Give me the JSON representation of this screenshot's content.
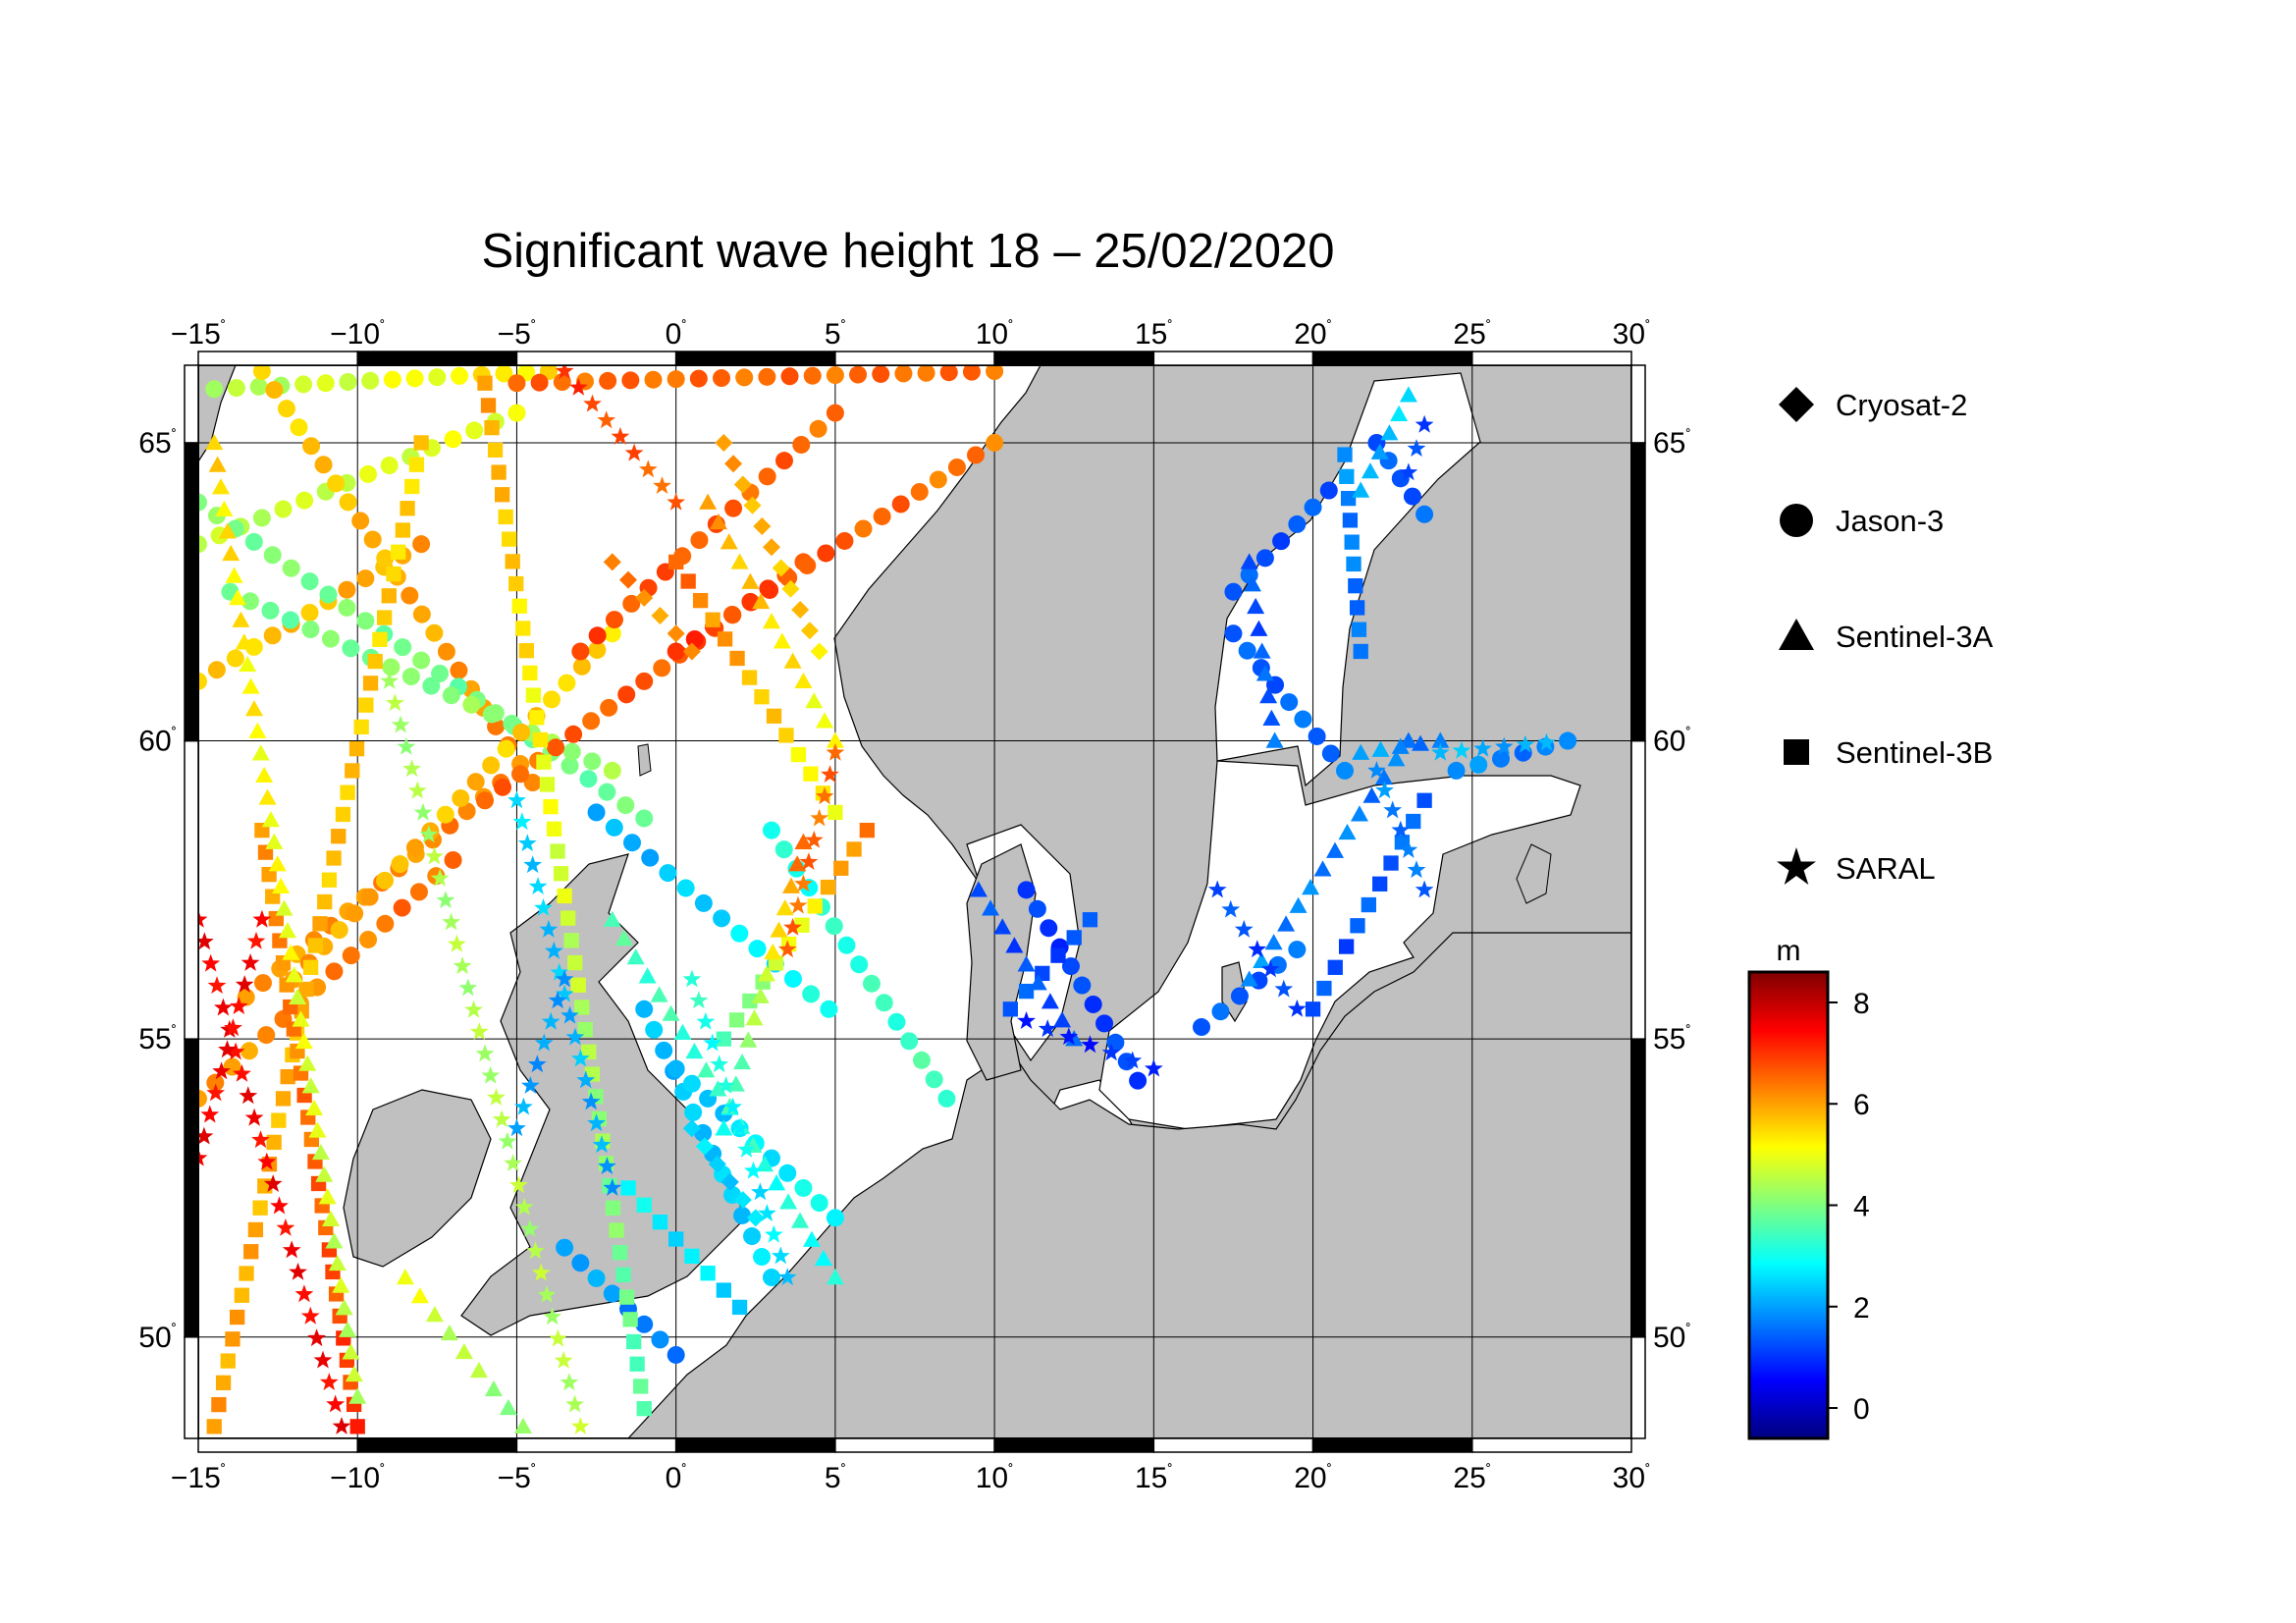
{
  "title": "Significant wave height 18 – 25/02/2020",
  "map": {
    "lon_range": [
      -15,
      30
    ],
    "lat_range": [
      48.3,
      66.3
    ],
    "lon_ticks": [
      -15,
      -10,
      -5,
      0,
      5,
      10,
      15,
      20,
      25,
      30
    ],
    "lat_ticks": [
      50,
      55,
      60,
      65
    ],
    "lon_tick_labels": [
      "−15",
      "−10",
      "−5",
      "0",
      "5",
      "10",
      "15",
      "20",
      "25",
      "30"
    ],
    "lat_tick_labels": [
      "50",
      "55",
      "60",
      "65"
    ],
    "degree_symbol": "˚",
    "grid": true,
    "land_color": "#c0c0c0",
    "sea_color": "#ffffff"
  },
  "legend": {
    "placement": "right",
    "entries": [
      {
        "label": "Cryosat-2",
        "marker": "diamond"
      },
      {
        "label": "Jason-3",
        "marker": "circle"
      },
      {
        "label": "Sentinel-3A",
        "marker": "triangle"
      },
      {
        "label": "Sentinel-3B",
        "marker": "square"
      },
      {
        "label": "SARAL",
        "marker": "star"
      }
    ]
  },
  "colorbar": {
    "unit": "m",
    "range": [
      -0.6,
      8.6
    ],
    "ticks": [
      "0",
      "2",
      "4",
      "6",
      "8"
    ],
    "tick_values": [
      0,
      2,
      4,
      6,
      8
    ],
    "colors": [
      "#00007f",
      "#0000ff",
      "#007fff",
      "#00ffff",
      "#7fff7f",
      "#ffff00",
      "#ff7f00",
      "#ff0000",
      "#7f0000"
    ]
  },
  "chart_data": {
    "type": "scatter",
    "title": "Significant wave height 18 – 25/02/2020",
    "xlabel": "",
    "ylabel": "",
    "xlim": [
      -15,
      30
    ],
    "ylim": [
      48.3,
      66.3
    ],
    "tracks": [
      {
        "marker": "circle",
        "from": [
          -15.0,
          61.0
        ],
        "to": [
          -8.0,
          63.3
        ],
        "hs": [
          5.5,
          6.0
        ]
      },
      {
        "marker": "circle",
        "from": [
          -15.0,
          63.3
        ],
        "to": [
          -5.0,
          65.5
        ],
        "hs": [
          4.5,
          5.0
        ]
      },
      {
        "marker": "circle",
        "from": [
          -14.5,
          65.9
        ],
        "to": [
          -4.0,
          66.2
        ],
        "hs": [
          4.3,
          5.5
        ]
      },
      {
        "marker": "circle",
        "from": [
          -13.0,
          66.2
        ],
        "to": [
          -4.5,
          59.3
        ],
        "hs": [
          5.5,
          6.3
        ]
      },
      {
        "marker": "circle",
        "from": [
          -15.0,
          64.0
        ],
        "to": [
          -1.0,
          58.7
        ],
        "hs": [
          4.0,
          3.8
        ]
      },
      {
        "marker": "circle",
        "from": [
          -14.0,
          62.5
        ],
        "to": [
          -2.0,
          59.5
        ],
        "hs": [
          3.8,
          4.3
        ]
      },
      {
        "marker": "circle",
        "from": [
          -13.5,
          55.7
        ],
        "to": [
          -5.5,
          59.3
        ],
        "hs": [
          6.0,
          6.3
        ]
      },
      {
        "marker": "circle",
        "from": [
          -15.0,
          54.0
        ],
        "to": [
          -7.0,
          58.0
        ],
        "hs": [
          6.0,
          6.5
        ]
      },
      {
        "marker": "circle",
        "from": [
          -12.0,
          56.0
        ],
        "to": [
          -2.0,
          61.8
        ],
        "hs": [
          6.0,
          5.5
        ]
      },
      {
        "marker": "circle",
        "from": [
          -6.0,
          59.0
        ],
        "to": [
          4.0,
          63.0
        ],
        "hs": [
          6.5,
          6.8
        ]
      },
      {
        "marker": "circle",
        "from": [
          -3.0,
          61.5
        ],
        "to": [
          5.0,
          65.5
        ],
        "hs": [
          6.8,
          6.5
        ]
      },
      {
        "marker": "circle",
        "from": [
          0.0,
          61.5
        ],
        "to": [
          10.0,
          65.0
        ],
        "hs": [
          7.0,
          6.3
        ]
      },
      {
        "marker": "circle",
        "from": [
          -5.0,
          66.0
        ],
        "to": [
          10.0,
          66.2
        ],
        "hs": [
          6.5,
          6.5
        ]
      },
      {
        "marker": "circle",
        "from": [
          -2.5,
          58.8
        ],
        "to": [
          4.8,
          55.5
        ],
        "hs": [
          2.0,
          3.0
        ]
      },
      {
        "marker": "circle",
        "from": [
          -1.0,
          55.5
        ],
        "to": [
          3.0,
          51.0
        ],
        "hs": [
          2.2,
          2.5
        ]
      },
      {
        "marker": "circle",
        "from": [
          0.0,
          54.5
        ],
        "to": [
          5.0,
          52.0
        ],
        "hs": [
          2.2,
          3.0
        ]
      },
      {
        "marker": "circle",
        "from": [
          0.0,
          49.7
        ],
        "to": [
          -3.5,
          51.5
        ],
        "hs": [
          1.5,
          2.2
        ]
      },
      {
        "marker": "circle",
        "from": [
          3.0,
          58.5
        ],
        "to": [
          8.5,
          54.0
        ],
        "hs": [
          3.0,
          3.5
        ]
      },
      {
        "marker": "circle",
        "from": [
          11.0,
          57.5
        ],
        "to": [
          14.5,
          54.3
        ],
        "hs": [
          1.0,
          1.2
        ]
      },
      {
        "marker": "circle",
        "from": [
          16.5,
          55.2
        ],
        "to": [
          19.5,
          56.5
        ],
        "hs": [
          1.3,
          1.5
        ]
      },
      {
        "marker": "circle",
        "from": [
          17.5,
          62.5
        ],
        "to": [
          20.5,
          64.2
        ],
        "hs": [
          1.3,
          1.3
        ]
      },
      {
        "marker": "circle",
        "from": [
          17.5,
          61.8
        ],
        "to": [
          21.0,
          59.5
        ],
        "hs": [
          1.3,
          1.6
        ]
      },
      {
        "marker": "circle",
        "from": [
          22.0,
          65.0
        ],
        "to": [
          23.5,
          63.8
        ],
        "hs": [
          1.2,
          1.5
        ]
      },
      {
        "marker": "circle",
        "from": [
          24.5,
          59.5
        ],
        "to": [
          28.0,
          60.0
        ],
        "hs": [
          1.8,
          1.6
        ]
      },
      {
        "marker": "square",
        "from": [
          -14.5,
          48.5
        ],
        "to": [
          -8.0,
          65.0
        ],
        "hs": [
          6.0,
          5.5
        ]
      },
      {
        "marker": "square",
        "from": [
          -6.0,
          66.0
        ],
        "to": [
          -1.0,
          48.8
        ],
        "hs": [
          6.0,
          3.5
        ]
      },
      {
        "marker": "square",
        "from": [
          -13.0,
          58.5
        ],
        "to": [
          -10.0,
          48.5
        ],
        "hs": [
          6.0,
          7.0
        ]
      },
      {
        "marker": "square",
        "from": [
          0.0,
          63.0
        ],
        "to": [
          5.0,
          58.8
        ],
        "hs": [
          6.5,
          5.0
        ]
      },
      {
        "marker": "square",
        "from": [
          1.5,
          55.0
        ],
        "to": [
          6.0,
          58.5
        ],
        "hs": [
          3.5,
          6.5
        ]
      },
      {
        "marker": "square",
        "from": [
          10.5,
          55.5
        ],
        "to": [
          13.0,
          57.0
        ],
        "hs": [
          1.3,
          1.2
        ]
      },
      {
        "marker": "square",
        "from": [
          20.0,
          55.5
        ],
        "to": [
          23.5,
          59.0
        ],
        "hs": [
          1.2,
          1.5
        ]
      },
      {
        "marker": "square",
        "from": [
          21.0,
          64.8
        ],
        "to": [
          21.5,
          61.5
        ],
        "hs": [
          1.8,
          1.5
        ]
      },
      {
        "marker": "square",
        "from": [
          -1.5,
          52.5
        ],
        "to": [
          2.0,
          50.5
        ],
        "hs": [
          2.8,
          2.5
        ]
      },
      {
        "marker": "triangle",
        "from": [
          -14.5,
          65.0
        ],
        "to": [
          -10.0,
          49.0
        ],
        "hs": [
          5.5,
          4.5
        ]
      },
      {
        "marker": "triangle",
        "from": [
          -8.5,
          51.0
        ],
        "to": [
          -4.8,
          48.5
        ],
        "hs": [
          5.0,
          4.0
        ]
      },
      {
        "marker": "triangle",
        "from": [
          -2.0,
          57.0
        ],
        "to": [
          5.0,
          51.0
        ],
        "hs": [
          3.5,
          3.0
        ]
      },
      {
        "marker": "triangle",
        "from": [
          1.0,
          64.0
        ],
        "to": [
          5.0,
          60.0
        ],
        "hs": [
          6.0,
          5.0
        ]
      },
      {
        "marker": "triangle",
        "from": [
          4.0,
          58.3
        ],
        "to": [
          1.5,
          53.5
        ],
        "hs": [
          6.5,
          3.0
        ]
      },
      {
        "marker": "triangle",
        "from": [
          9.5,
          57.5
        ],
        "to": [
          12.5,
          55.0
        ],
        "hs": [
          1.2,
          1.3
        ]
      },
      {
        "marker": "triangle",
        "from": [
          18.0,
          56.0
        ],
        "to": [
          23.0,
          60.0
        ],
        "hs": [
          1.8,
          1.6
        ]
      },
      {
        "marker": "triangle",
        "from": [
          18.0,
          63.0
        ],
        "to": [
          18.8,
          60.0
        ],
        "hs": [
          1.2,
          1.5
        ]
      },
      {
        "marker": "triangle",
        "from": [
          21.5,
          59.8
        ],
        "to": [
          24.0,
          60.0
        ],
        "hs": [
          2.0,
          1.6
        ]
      },
      {
        "marker": "triangle",
        "from": [
          23.0,
          65.8
        ],
        "to": [
          21.5,
          64.2
        ],
        "hs": [
          2.5,
          2.0
        ]
      },
      {
        "marker": "star",
        "from": [
          -15.0,
          57.0
        ],
        "to": [
          -10.5,
          48.5
        ],
        "hs": [
          7.5,
          7.5
        ]
      },
      {
        "marker": "star",
        "from": [
          -15.0,
          53.0
        ],
        "to": [
          -13.0,
          57.0
        ],
        "hs": [
          7.5,
          7.5
        ]
      },
      {
        "marker": "star",
        "from": [
          -9.0,
          61.0
        ],
        "to": [
          -3.0,
          48.5
        ],
        "hs": [
          4.3,
          4.5
        ]
      },
      {
        "marker": "star",
        "from": [
          -5.0,
          59.0
        ],
        "to": [
          -2.0,
          52.5
        ],
        "hs": [
          2.5,
          2.0
        ]
      },
      {
        "marker": "star",
        "from": [
          -5.0,
          53.5
        ],
        "to": [
          -3.5,
          56.0
        ],
        "hs": [
          2.0,
          2.0
        ]
      },
      {
        "marker": "star",
        "from": [
          5.0,
          59.8
        ],
        "to": [
          3.5,
          56.5
        ],
        "hs": [
          6.5,
          6.5
        ]
      },
      {
        "marker": "star",
        "from": [
          0.5,
          56.0
        ],
        "to": [
          3.5,
          51.0
        ],
        "hs": [
          3.2,
          2.5
        ]
      },
      {
        "marker": "star",
        "from": [
          -3.5,
          66.2
        ],
        "to": [
          0.0,
          64.0
        ],
        "hs": [
          7.0,
          6.5
        ]
      },
      {
        "marker": "star",
        "from": [
          11.0,
          55.3
        ],
        "to": [
          15.0,
          54.5
        ],
        "hs": [
          0.7,
          1.0
        ]
      },
      {
        "marker": "star",
        "from": [
          19.5,
          55.5
        ],
        "to": [
          17.0,
          57.5
        ],
        "hs": [
          1.0,
          1.3
        ]
      },
      {
        "marker": "star",
        "from": [
          22.0,
          59.5
        ],
        "to": [
          23.5,
          57.5
        ],
        "hs": [
          1.8,
          1.5
        ]
      },
      {
        "marker": "star",
        "from": [
          24.0,
          59.8
        ],
        "to": [
          28.0,
          60.0
        ],
        "hs": [
          2.2,
          2.0
        ]
      },
      {
        "marker": "star",
        "from": [
          23.5,
          65.3
        ],
        "to": [
          23.0,
          64.5
        ],
        "hs": [
          1.0,
          1.2
        ]
      },
      {
        "marker": "diamond",
        "from": [
          1.5,
          65.0
        ],
        "to": [
          4.5,
          61.5
        ],
        "hs": [
          6.0,
          5.5
        ]
      },
      {
        "marker": "diamond",
        "from": [
          -2.0,
          63.0
        ],
        "to": [
          0.5,
          61.5
        ],
        "hs": [
          6.3,
          6.0
        ]
      },
      {
        "marker": "diamond",
        "from": [
          0.5,
          53.5
        ],
        "to": [
          2.5,
          52.0
        ],
        "hs": [
          2.5,
          2.5
        ]
      }
    ]
  }
}
